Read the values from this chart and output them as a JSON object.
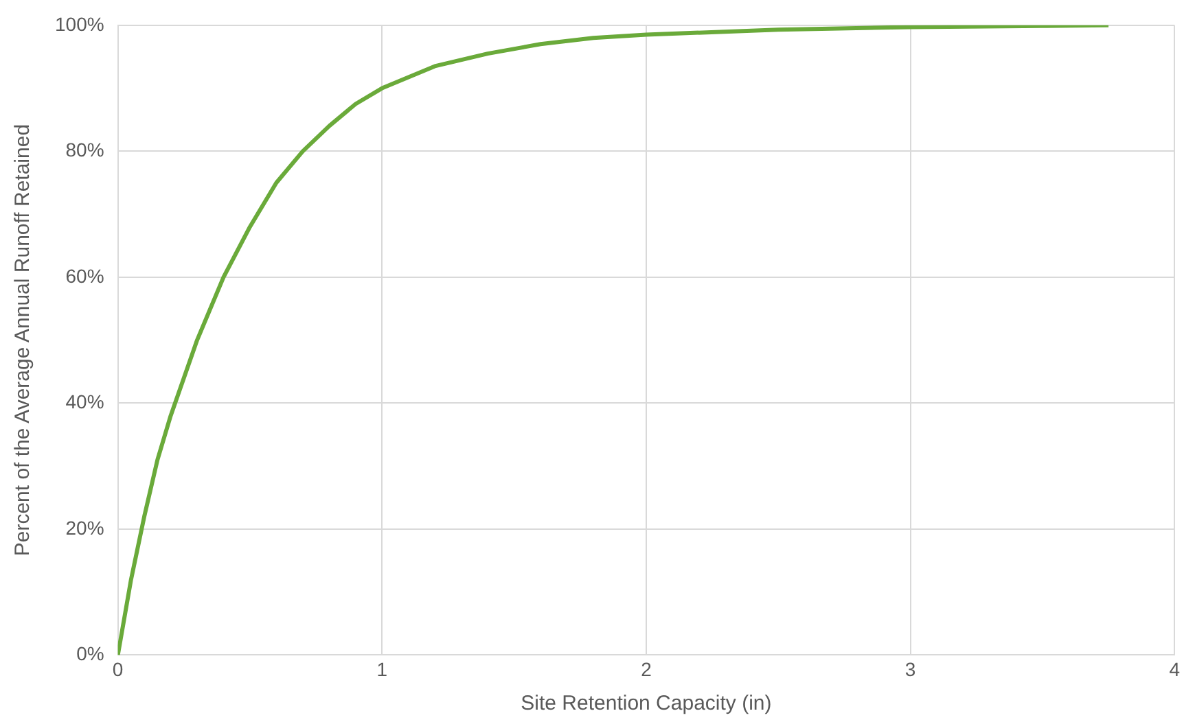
{
  "chart_data": {
    "type": "line",
    "xlabel": "Site Retention Capacity (in)",
    "ylabel": "Percent of the Average Annual Runoff Retained",
    "x": [
      0,
      0.05,
      0.1,
      0.15,
      0.2,
      0.3,
      0.4,
      0.5,
      0.6,
      0.7,
      0.8,
      0.9,
      1.0,
      1.2,
      1.4,
      1.6,
      1.8,
      2.0,
      2.5,
      3.0,
      3.5,
      3.75
    ],
    "series": [
      {
        "color": "#6aaa3a",
        "values": [
          0,
          12,
          22,
          31,
          38,
          50,
          60,
          68,
          75,
          80,
          84,
          87.5,
          90,
          93.5,
          95.5,
          97,
          98,
          98.5,
          99.3,
          99.7,
          99.9,
          100
        ]
      }
    ],
    "xlim": [
      0,
      4
    ],
    "xticks": [
      0,
      1,
      2,
      3,
      4
    ],
    "ylim": [
      0,
      100
    ],
    "yticks": [
      {
        "value": 0,
        "label": "0%"
      },
      {
        "value": 20,
        "label": "20%"
      },
      {
        "value": 40,
        "label": "40%"
      },
      {
        "value": 60,
        "label": "60%"
      },
      {
        "value": 80,
        "label": "80%"
      },
      {
        "value": 100,
        "label": "100%"
      }
    ],
    "grid": true,
    "legend": false,
    "marker": "none",
    "line_style": "solid"
  }
}
